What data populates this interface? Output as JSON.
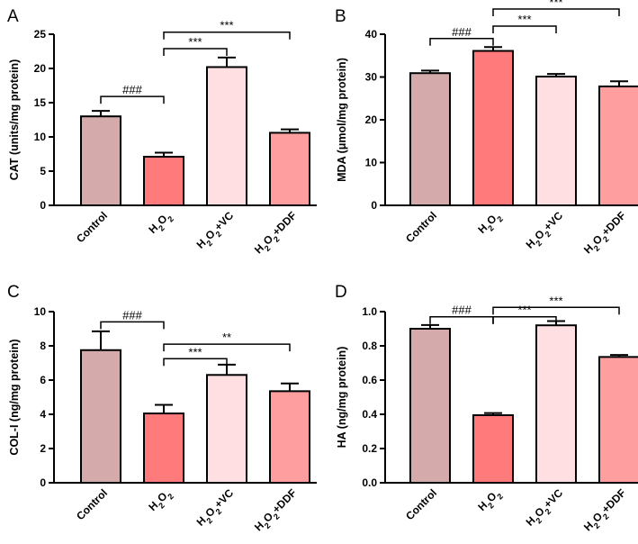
{
  "colors": {
    "Control": "#d4aaaa",
    "H2O2": "#ff7b7b",
    "H2O2+VC": "#ffdfe1",
    "H2O2+DDF": "#ff9e9e",
    "outline": "#000000"
  },
  "chart_data": [
    {
      "type": "bar",
      "panel": "A",
      "title": "",
      "ylabel": "CAT (units/mg protein)",
      "ylim": [
        0,
        25
      ],
      "yticks": [
        "0",
        "5",
        "10",
        "15",
        "20",
        "25"
      ],
      "categories": [
        {
          "pre": "Control"
        },
        {
          "pre": "H",
          "sub": "2",
          "mid": "O",
          "sub2": "2"
        },
        {
          "pre": "H",
          "sub": "2",
          "mid": "O",
          "sub2": "2",
          "post": "+VC"
        },
        {
          "pre": "H",
          "sub": "2",
          "mid": "O",
          "sub2": "2",
          "post": "+DDF"
        }
      ],
      "series": [
        {
          "name": "CAT",
          "values": [
            13.0,
            7.1,
            20.2,
            10.6
          ],
          "errors": [
            0.8,
            0.6,
            1.4,
            0.5
          ]
        }
      ],
      "comparisons": [
        {
          "from": 0,
          "to": 1,
          "label": "###",
          "y": 15.9
        },
        {
          "from": 1,
          "to": 2,
          "label": "***",
          "y": 22.9
        },
        {
          "from": 1,
          "to": 3,
          "label": "***",
          "y": 25.3
        }
      ]
    },
    {
      "type": "bar",
      "panel": "B",
      "title": "",
      "ylabel": "MDA (μmol/mg protein)",
      "ylim": [
        0,
        40
      ],
      "yticks": [
        "0",
        "10",
        "20",
        "30",
        "40"
      ],
      "categories": [
        {
          "pre": "Control"
        },
        {
          "pre": "H",
          "sub": "2",
          "mid": "O",
          "sub2": "2"
        },
        {
          "pre": "H",
          "sub": "2",
          "mid": "O",
          "sub2": "2",
          "post": "+VC"
        },
        {
          "pre": "H",
          "sub": "2",
          "mid": "O",
          "sub2": "2",
          "post": "+DDF"
        }
      ],
      "series": [
        {
          "name": "MDA",
          "values": [
            30.9,
            36.1,
            30.1,
            27.8
          ],
          "errors": [
            0.6,
            0.9,
            0.6,
            1.2
          ]
        }
      ],
      "comparisons": [
        {
          "from": 0,
          "to": 1,
          "label": "###",
          "y": 39.0
        },
        {
          "from": 1,
          "to": 2,
          "label": "***",
          "y": 41.9
        },
        {
          "from": 1,
          "to": 3,
          "label": "***",
          "y": 46.0
        }
      ]
    },
    {
      "type": "bar",
      "panel": "C",
      "title": "",
      "ylabel": "COL-I (ng/mg protein)",
      "ylim": [
        0,
        10
      ],
      "yticks": [
        "0",
        "2",
        "4",
        "6",
        "8",
        "10"
      ],
      "categories": [
        {
          "pre": "Control"
        },
        {
          "pre": "H",
          "sub": "2",
          "mid": "O",
          "sub2": "2"
        },
        {
          "pre": "H",
          "sub": "2",
          "mid": "O",
          "sub2": "2",
          "post": "+VC"
        },
        {
          "pre": "H",
          "sub": "2",
          "mid": "O",
          "sub2": "2",
          "post": "+DDF"
        }
      ],
      "series": [
        {
          "name": "COL-I",
          "values": [
            7.75,
            4.05,
            6.3,
            5.35
          ],
          "errors": [
            1.1,
            0.5,
            0.6,
            0.45
          ]
        }
      ],
      "comparisons": [
        {
          "from": 0,
          "to": 1,
          "label": "###",
          "y": 9.4
        },
        {
          "from": 1,
          "to": 2,
          "label": "***",
          "y": 7.25
        },
        {
          "from": 1,
          "to": 3,
          "label": "**",
          "y": 8.1
        }
      ]
    },
    {
      "type": "bar",
      "panel": "D",
      "title": "",
      "ylabel": "HA (ng/mg protein)",
      "ylim": [
        0,
        1.0
      ],
      "yticks": [
        "0.0",
        "0.2",
        "0.4",
        "0.6",
        "0.8",
        "1.0"
      ],
      "categories": [
        {
          "pre": "Control"
        },
        {
          "pre": "H",
          "sub": "2",
          "mid": "O",
          "sub2": "2"
        },
        {
          "pre": "H",
          "sub": "2",
          "mid": "O",
          "sub2": "2",
          "post": "+VC"
        },
        {
          "pre": "H",
          "sub": "2",
          "mid": "O",
          "sub2": "2",
          "post": "+DDF"
        }
      ],
      "series": [
        {
          "name": "HA",
          "values": [
            0.9,
            0.395,
            0.92,
            0.735
          ],
          "errors": [
            0.022,
            0.012,
            0.025,
            0.012
          ]
        }
      ],
      "comparisons": [
        {
          "from": 0,
          "to": 1,
          "label": "###",
          "y": 0.97
        },
        {
          "from": 1,
          "to": 2,
          "label": "***",
          "y": 0.97
        },
        {
          "from": 1,
          "to": 3,
          "label": "***",
          "y": 1.025
        }
      ]
    }
  ]
}
